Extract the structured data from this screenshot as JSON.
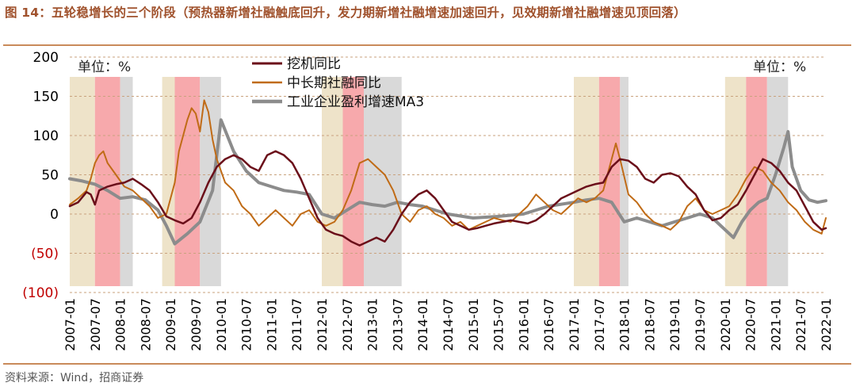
{
  "figure": {
    "title": "图 14：五轮稳增长的三个阶段（预热器新增社融触底回升，发力期新增社融增速加速回升，见效期新增社融增速见顶回落）",
    "source": "资料来源：Wind，招商证券"
  },
  "chart_data": {
    "type": "line",
    "unit_label_left": "单位：%",
    "unit_label_right": "单位：%",
    "ylim": [
      -100,
      200
    ],
    "yticks": [
      {
        "value": 200,
        "label": "200",
        "color": "#000000"
      },
      {
        "value": 150,
        "label": "150",
        "color": "#000000"
      },
      {
        "value": 100,
        "label": "100",
        "color": "#000000"
      },
      {
        "value": 50,
        "label": "50",
        "color": "#000000"
      },
      {
        "value": 0,
        "label": "0",
        "color": "#000000"
      },
      {
        "value": -50,
        "label": "(50)",
        "color": "#c00000"
      },
      {
        "value": -100,
        "label": "(100)",
        "color": "#c00000"
      }
    ],
    "xticks": [
      "2007-01",
      "2007-07",
      "2008-01",
      "2008-07",
      "2009-01",
      "2009-07",
      "2010-01",
      "2010-07",
      "2011-01",
      "2011-07",
      "2012-01",
      "2012-07",
      "2013-01",
      "2013-07",
      "2014-01",
      "2014-07",
      "2015-01",
      "2015-07",
      "2016-01",
      "2016-07",
      "2017-01",
      "2017-07",
      "2018-01",
      "2018-07",
      "2019-01",
      "2019-07",
      "2020-01",
      "2020-07",
      "2021-01",
      "2021-07",
      "2022-01"
    ],
    "legend_position": "top-left",
    "stage_colors": {
      "warmup": "#eee3c9",
      "push": "#f7a9ac",
      "effect": "#d9d9d9"
    },
    "stages": [
      {
        "type": "warmup",
        "start": "2007-01",
        "end": "2007-07"
      },
      {
        "type": "push",
        "start": "2007-07",
        "end": "2008-01"
      },
      {
        "type": "effect",
        "start": "2008-01",
        "end": "2008-04"
      },
      {
        "type": "warmup",
        "start": "2008-11",
        "end": "2009-02"
      },
      {
        "type": "push",
        "start": "2009-02",
        "end": "2009-08"
      },
      {
        "type": "effect",
        "start": "2009-08",
        "end": "2010-01"
      },
      {
        "type": "warmup",
        "start": "2012-01",
        "end": "2012-06"
      },
      {
        "type": "push",
        "start": "2012-06",
        "end": "2012-11"
      },
      {
        "type": "effect",
        "start": "2012-11",
        "end": "2013-08"
      },
      {
        "type": "warmup",
        "start": "2017-01",
        "end": "2017-07"
      },
      {
        "type": "push",
        "start": "2017-07",
        "end": "2017-12"
      },
      {
        "type": "effect",
        "start": "2017-12",
        "end": "2018-02"
      },
      {
        "type": "warmup",
        "start": "2020-01",
        "end": "2020-06"
      },
      {
        "type": "push",
        "start": "2020-06",
        "end": "2020-11"
      },
      {
        "type": "effect",
        "start": "2020-11",
        "end": "2021-04"
      }
    ],
    "series": [
      {
        "name": "挖机同比",
        "color": "#6b0f1a",
        "width": 2.5,
        "points": [
          [
            "2007-01",
            10
          ],
          [
            "2007-03",
            15
          ],
          [
            "2007-05",
            28
          ],
          [
            "2007-06",
            25
          ],
          [
            "2007-07",
            12
          ],
          [
            "2007-08",
            30
          ],
          [
            "2007-10",
            35
          ],
          [
            "2007-12",
            38
          ],
          [
            "2008-02",
            40
          ],
          [
            "2008-04",
            45
          ],
          [
            "2008-06",
            38
          ],
          [
            "2008-08",
            30
          ],
          [
            "2008-10",
            15
          ],
          [
            "2008-12",
            -3
          ],
          [
            "2009-02",
            -8
          ],
          [
            "2009-04",
            -12
          ],
          [
            "2009-06",
            -5
          ],
          [
            "2009-08",
            15
          ],
          [
            "2009-10",
            40
          ],
          [
            "2009-12",
            60
          ],
          [
            "2010-02",
            70
          ],
          [
            "2010-04",
            75
          ],
          [
            "2010-06",
            70
          ],
          [
            "2010-08",
            60
          ],
          [
            "2010-10",
            55
          ],
          [
            "2010-12",
            75
          ],
          [
            "2011-02",
            80
          ],
          [
            "2011-04",
            75
          ],
          [
            "2011-06",
            65
          ],
          [
            "2011-08",
            45
          ],
          [
            "2011-10",
            20
          ],
          [
            "2011-12",
            -5
          ],
          [
            "2012-02",
            -20
          ],
          [
            "2012-04",
            -25
          ],
          [
            "2012-06",
            -28
          ],
          [
            "2012-08",
            -35
          ],
          [
            "2012-10",
            -40
          ],
          [
            "2012-12",
            -35
          ],
          [
            "2013-02",
            -30
          ],
          [
            "2013-04",
            -35
          ],
          [
            "2013-06",
            -20
          ],
          [
            "2013-08",
            0
          ],
          [
            "2013-10",
            15
          ],
          [
            "2013-12",
            25
          ],
          [
            "2014-02",
            30
          ],
          [
            "2014-04",
            20
          ],
          [
            "2014-06",
            5
          ],
          [
            "2014-08",
            -10
          ],
          [
            "2014-10",
            -15
          ],
          [
            "2014-12",
            -20
          ],
          [
            "2015-02",
            -18
          ],
          [
            "2015-04",
            -15
          ],
          [
            "2015-06",
            -12
          ],
          [
            "2015-08",
            -10
          ],
          [
            "2015-10",
            -8
          ],
          [
            "2015-12",
            -10
          ],
          [
            "2016-02",
            -12
          ],
          [
            "2016-04",
            -8
          ],
          [
            "2016-06",
            0
          ],
          [
            "2016-08",
            10
          ],
          [
            "2016-10",
            20
          ],
          [
            "2016-12",
            25
          ],
          [
            "2017-02",
            30
          ],
          [
            "2017-04",
            35
          ],
          [
            "2017-06",
            38
          ],
          [
            "2017-08",
            40
          ],
          [
            "2017-10",
            60
          ],
          [
            "2017-12",
            70
          ],
          [
            "2018-02",
            68
          ],
          [
            "2018-04",
            60
          ],
          [
            "2018-06",
            45
          ],
          [
            "2018-08",
            40
          ],
          [
            "2018-10",
            50
          ],
          [
            "2018-12",
            52
          ],
          [
            "2019-02",
            48
          ],
          [
            "2019-04",
            35
          ],
          [
            "2019-06",
            25
          ],
          [
            "2019-08",
            5
          ],
          [
            "2019-10",
            -8
          ],
          [
            "2019-12",
            -5
          ],
          [
            "2020-02",
            5
          ],
          [
            "2020-04",
            12
          ],
          [
            "2020-06",
            30
          ],
          [
            "2020-08",
            50
          ],
          [
            "2020-10",
            70
          ],
          [
            "2020-12",
            65
          ],
          [
            "2021-02",
            55
          ],
          [
            "2021-04",
            40
          ],
          [
            "2021-06",
            30
          ],
          [
            "2021-08",
            10
          ],
          [
            "2021-10",
            -10
          ],
          [
            "2021-12",
            -20
          ],
          [
            "2022-01",
            -18
          ]
        ]
      },
      {
        "name": "中长期社融同比",
        "color": "#c06b16",
        "width": 2,
        "points": [
          [
            "2007-01",
            12
          ],
          [
            "2007-03",
            20
          ],
          [
            "2007-05",
            30
          ],
          [
            "2007-06",
            45
          ],
          [
            "2007-07",
            65
          ],
          [
            "2007-08",
            75
          ],
          [
            "2007-09",
            80
          ],
          [
            "2007-10",
            65
          ],
          [
            "2007-12",
            50
          ],
          [
            "2008-02",
            35
          ],
          [
            "2008-04",
            30
          ],
          [
            "2008-06",
            20
          ],
          [
            "2008-08",
            10
          ],
          [
            "2008-10",
            -5
          ],
          [
            "2008-12",
            0
          ],
          [
            "2009-02",
            40
          ],
          [
            "2009-03",
            80
          ],
          [
            "2009-04",
            100
          ],
          [
            "2009-05",
            120
          ],
          [
            "2009-06",
            135
          ],
          [
            "2009-07",
            128
          ],
          [
            "2009-08",
            105
          ],
          [
            "2009-09",
            145
          ],
          [
            "2009-10",
            130
          ],
          [
            "2009-11",
            95
          ],
          [
            "2009-12",
            70
          ],
          [
            "2010-02",
            40
          ],
          [
            "2010-04",
            30
          ],
          [
            "2010-06",
            10
          ],
          [
            "2010-08",
            0
          ],
          [
            "2010-10",
            -15
          ],
          [
            "2010-12",
            -5
          ],
          [
            "2011-02",
            5
          ],
          [
            "2011-04",
            -5
          ],
          [
            "2011-06",
            -15
          ],
          [
            "2011-08",
            0
          ],
          [
            "2011-10",
            5
          ],
          [
            "2011-12",
            -10
          ],
          [
            "2012-02",
            -15
          ],
          [
            "2012-04",
            -10
          ],
          [
            "2012-06",
            5
          ],
          [
            "2012-08",
            30
          ],
          [
            "2012-10",
            65
          ],
          [
            "2012-12",
            70
          ],
          [
            "2013-02",
            60
          ],
          [
            "2013-04",
            50
          ],
          [
            "2013-06",
            30
          ],
          [
            "2013-08",
            0
          ],
          [
            "2013-10",
            -10
          ],
          [
            "2013-12",
            5
          ],
          [
            "2014-02",
            10
          ],
          [
            "2014-04",
            0
          ],
          [
            "2014-06",
            -5
          ],
          [
            "2014-08",
            -15
          ],
          [
            "2014-10",
            -10
          ],
          [
            "2014-12",
            -20
          ],
          [
            "2015-02",
            -15
          ],
          [
            "2015-04",
            -10
          ],
          [
            "2015-06",
            -5
          ],
          [
            "2015-08",
            -8
          ],
          [
            "2015-10",
            -10
          ],
          [
            "2015-12",
            0
          ],
          [
            "2016-02",
            10
          ],
          [
            "2016-04",
            25
          ],
          [
            "2016-06",
            15
          ],
          [
            "2016-08",
            5
          ],
          [
            "2016-10",
            0
          ],
          [
            "2016-12",
            10
          ],
          [
            "2017-02",
            20
          ],
          [
            "2017-04",
            15
          ],
          [
            "2017-06",
            20
          ],
          [
            "2017-08",
            30
          ],
          [
            "2017-10",
            70
          ],
          [
            "2017-11",
            90
          ],
          [
            "2017-12",
            70
          ],
          [
            "2018-02",
            25
          ],
          [
            "2018-04",
            15
          ],
          [
            "2018-06",
            0
          ],
          [
            "2018-08",
            -10
          ],
          [
            "2018-10",
            -15
          ],
          [
            "2018-12",
            -20
          ],
          [
            "2019-02",
            -10
          ],
          [
            "2019-04",
            10
          ],
          [
            "2019-06",
            20
          ],
          [
            "2019-08",
            5
          ],
          [
            "2019-10",
            0
          ],
          [
            "2019-12",
            5
          ],
          [
            "2020-02",
            10
          ],
          [
            "2020-04",
            25
          ],
          [
            "2020-06",
            45
          ],
          [
            "2020-08",
            60
          ],
          [
            "2020-10",
            55
          ],
          [
            "2020-12",
            40
          ],
          [
            "2021-02",
            30
          ],
          [
            "2021-04",
            15
          ],
          [
            "2021-06",
            5
          ],
          [
            "2021-08",
            -10
          ],
          [
            "2021-10",
            -20
          ],
          [
            "2021-12",
            -25
          ],
          [
            "2022-01",
            -5
          ]
        ]
      },
      {
        "name": "工业企业盈利增速MA3",
        "color": "#8c8c8c",
        "width": 4,
        "points": [
          [
            "2007-01",
            45
          ],
          [
            "2007-04",
            42
          ],
          [
            "2007-07",
            38
          ],
          [
            "2007-10",
            30
          ],
          [
            "2008-01",
            20
          ],
          [
            "2008-04",
            22
          ],
          [
            "2008-07",
            18
          ],
          [
            "2008-10",
            5
          ],
          [
            "2008-12",
            -15
          ],
          [
            "2009-02",
            -38
          ],
          [
            "2009-05",
            -25
          ],
          [
            "2009-08",
            -10
          ],
          [
            "2009-11",
            30
          ],
          [
            "2010-01",
            120
          ],
          [
            "2010-04",
            80
          ],
          [
            "2010-07",
            55
          ],
          [
            "2010-10",
            40
          ],
          [
            "2011-01",
            35
          ],
          [
            "2011-04",
            30
          ],
          [
            "2011-07",
            28
          ],
          [
            "2011-10",
            25
          ],
          [
            "2012-01",
            0
          ],
          [
            "2012-04",
            -5
          ],
          [
            "2012-07",
            5
          ],
          [
            "2012-10",
            15
          ],
          [
            "2013-01",
            12
          ],
          [
            "2013-04",
            10
          ],
          [
            "2013-07",
            15
          ],
          [
            "2013-10",
            12
          ],
          [
            "2014-01",
            10
          ],
          [
            "2014-04",
            5
          ],
          [
            "2014-07",
            0
          ],
          [
            "2015-01",
            -5
          ],
          [
            "2015-07",
            -3
          ],
          [
            "2016-01",
            0
          ],
          [
            "2016-07",
            10
          ],
          [
            "2017-01",
            15
          ],
          [
            "2017-04",
            18
          ],
          [
            "2017-07",
            20
          ],
          [
            "2017-10",
            15
          ],
          [
            "2018-01",
            -10
          ],
          [
            "2018-04",
            -5
          ],
          [
            "2018-07",
            -10
          ],
          [
            "2018-10",
            -15
          ],
          [
            "2019-01",
            -10
          ],
          [
            "2019-04",
            -5
          ],
          [
            "2019-07",
            0
          ],
          [
            "2019-10",
            -5
          ],
          [
            "2020-01",
            -20
          ],
          [
            "2020-03",
            -30
          ],
          [
            "2020-05",
            -10
          ],
          [
            "2020-07",
            5
          ],
          [
            "2020-09",
            15
          ],
          [
            "2020-11",
            20
          ],
          [
            "2021-01",
            50
          ],
          [
            "2021-03",
            85
          ],
          [
            "2021-04",
            105
          ],
          [
            "2021-05",
            60
          ],
          [
            "2021-07",
            30
          ],
          [
            "2021-09",
            18
          ],
          [
            "2021-11",
            15
          ],
          [
            "2022-01",
            17
          ]
        ]
      }
    ]
  }
}
